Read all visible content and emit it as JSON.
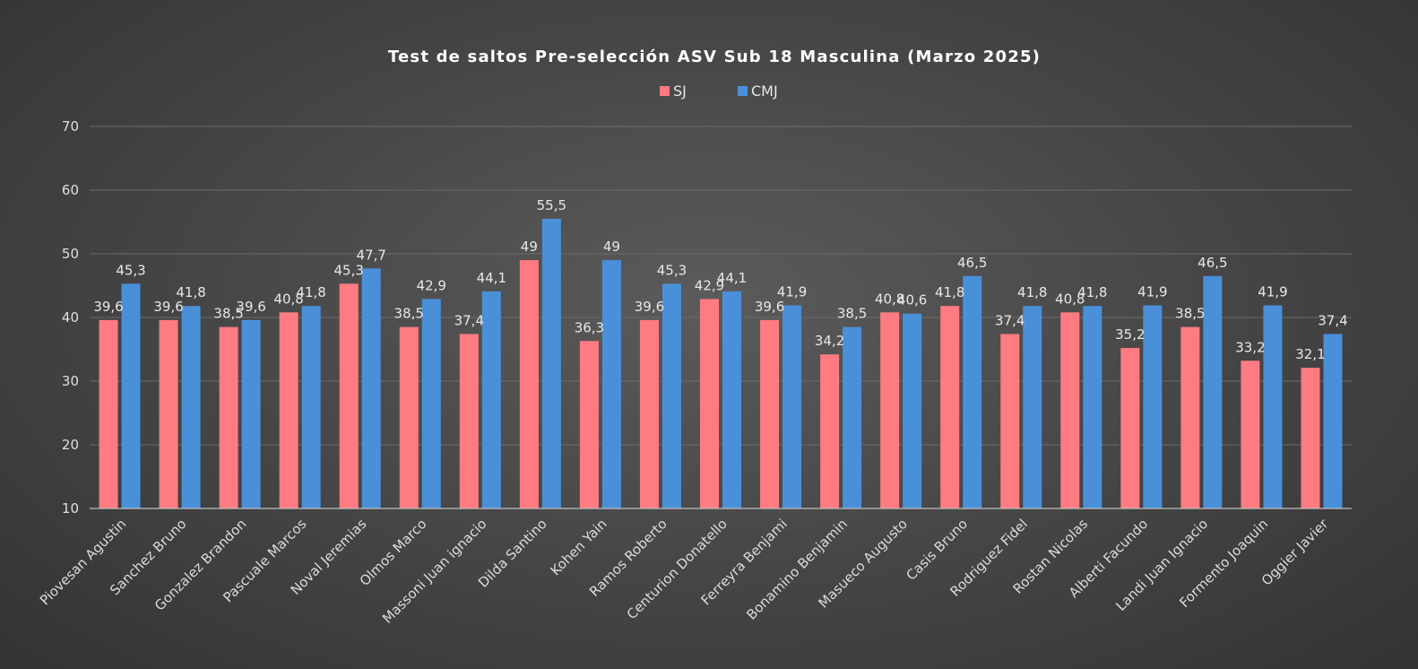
{
  "chart_data": {
    "type": "bar",
    "title": "Test de saltos Pre-selección ASV Sub 18 Masculina (Marzo 2025)",
    "legend_position": "top-center",
    "grid": true,
    "ylim": [
      10,
      70
    ],
    "yticks": [
      "10",
      "20",
      "30",
      "40",
      "50",
      "60",
      "70"
    ],
    "categories": [
      "Piovesan Agustin",
      "Sanchez Bruno",
      "Gonzalez Brandon",
      "Pascuale Marcos",
      "Noval Jeremias",
      "Olmos Marco",
      "Massoni Juan ignacio",
      "Dilda Santino",
      "Kohen Yain",
      "Ramos Roberto",
      "Centurion Donatello",
      "Ferreyra Benjami",
      "Bonamino Benjamin",
      "Masueco Augusto",
      "Casis Bruno",
      "Rodriguez Fidel",
      "Rostan Nicolas",
      "Alberti Facundo",
      "Landi Juan Ignacio",
      "Formento Joaquin",
      "Oggier Javier"
    ],
    "series": [
      {
        "name": "SJ",
        "color": "#ff7b82",
        "values": [
          39.6,
          39.6,
          38.5,
          40.8,
          45.3,
          38.5,
          37.4,
          49,
          36.3,
          39.6,
          42.9,
          39.6,
          34.2,
          40.8,
          41.8,
          37.4,
          40.8,
          35.2,
          38.5,
          33.2,
          32.1
        ],
        "labels": [
          "39,6",
          "39,6",
          "38,5",
          "40,8",
          "45,3",
          "38,5",
          "37,4",
          "49",
          "36,3",
          "39,6",
          "42,9",
          "39,6",
          "34,2",
          "40,8",
          "41,8",
          "37,4",
          "40,8",
          "35,2",
          "38,5",
          "33,2",
          "32,1"
        ]
      },
      {
        "name": "CMJ",
        "color": "#4a90d9",
        "values": [
          45.3,
          41.8,
          39.6,
          41.8,
          47.7,
          42.9,
          44.1,
          55.5,
          49,
          45.3,
          44.1,
          41.9,
          38.5,
          40.6,
          46.5,
          41.8,
          41.8,
          41.9,
          46.5,
          41.9,
          37.4
        ],
        "labels": [
          "45,3",
          "41,8",
          "39,6",
          "41,8",
          "47,7",
          "42,9",
          "44,1",
          "55,5",
          "49",
          "45,3",
          "44,1",
          "41,9",
          "38,5",
          "40,6",
          "46,5",
          "41,8",
          "41,8",
          "41,9",
          "46,5",
          "41,9",
          "37,4"
        ]
      }
    ]
  }
}
